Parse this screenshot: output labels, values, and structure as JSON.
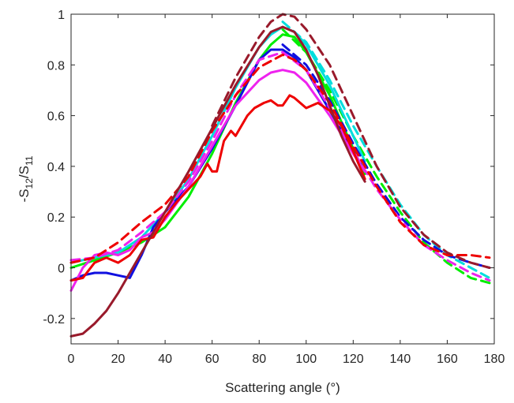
{
  "chart_data": {
    "type": "line",
    "title": "",
    "xlabel": "Scattering angle (°)",
    "ylabel": {
      "base_a": "-S",
      "sub_a": "12",
      "slash": "/S",
      "sub_b": "11"
    },
    "xlim": [
      0,
      180
    ],
    "ylim": [
      -0.3,
      1
    ],
    "xticks": [
      "0",
      "20",
      "40",
      "60",
      "80",
      "100",
      "120",
      "140",
      "160",
      "180"
    ],
    "yticks": [
      "-0.2",
      "0",
      "0.2",
      "0.4",
      "0.6",
      "0.8",
      "1"
    ],
    "grid": false,
    "legend": "none",
    "series": [
      {
        "color": "#00ee00",
        "style": "solid",
        "x": [
          0,
          10,
          20,
          30,
          40,
          50,
          60,
          70,
          80,
          85,
          90,
          95,
          100,
          110,
          120,
          125
        ],
        "y": [
          0.0,
          0.03,
          0.06,
          0.1,
          0.16,
          0.28,
          0.45,
          0.65,
          0.82,
          0.88,
          0.92,
          0.91,
          0.85,
          0.68,
          0.47,
          0.37
        ]
      },
      {
        "color": "#00ee00",
        "style": "dashed",
        "x": [
          90,
          100,
          110,
          120,
          130,
          140,
          150,
          160,
          170,
          178
        ],
        "y": [
          0.94,
          0.85,
          0.7,
          0.52,
          0.36,
          0.22,
          0.1,
          0.02,
          -0.04,
          -0.06
        ]
      },
      {
        "color": "#00dddd",
        "style": "solid",
        "x": [
          0,
          10,
          20,
          30,
          40,
          50,
          60,
          70,
          80,
          85,
          90,
          95,
          100,
          110,
          120,
          125
        ],
        "y": [
          0.02,
          0.04,
          0.06,
          0.12,
          0.22,
          0.35,
          0.52,
          0.71,
          0.87,
          0.92,
          0.95,
          0.93,
          0.88,
          0.72,
          0.52,
          0.42
        ]
      },
      {
        "color": "#00dddd",
        "style": "dashed",
        "x": [
          90,
          100,
          110,
          120,
          130,
          140,
          150,
          160,
          170,
          178
        ],
        "y": [
          0.97,
          0.89,
          0.74,
          0.56,
          0.4,
          0.25,
          0.13,
          0.05,
          0.0,
          -0.04
        ]
      },
      {
        "color": "#1010e0",
        "style": "solid",
        "x": [
          0,
          5,
          10,
          15,
          20,
          25,
          30,
          35,
          40,
          50,
          60,
          70,
          75,
          80,
          85,
          90,
          95,
          100,
          110,
          120,
          125
        ],
        "y": [
          -0.05,
          -0.03,
          -0.02,
          -0.02,
          -0.03,
          -0.04,
          0.05,
          0.16,
          0.22,
          0.32,
          0.47,
          0.64,
          0.73,
          0.82,
          0.86,
          0.86,
          0.83,
          0.78,
          0.62,
          0.46,
          0.38
        ]
      },
      {
        "color": "#1010e0",
        "style": "dashed",
        "x": [
          90,
          100,
          110,
          120,
          130,
          140,
          150,
          160,
          170,
          178
        ],
        "y": [
          0.88,
          0.8,
          0.66,
          0.49,
          0.33,
          0.2,
          0.11,
          0.05,
          0.02,
          0.0
        ]
      },
      {
        "color": "#ee22ee",
        "style": "solid",
        "x": [
          0,
          5,
          10,
          15,
          20,
          25,
          30,
          35,
          40,
          50,
          60,
          70,
          80,
          85,
          90,
          95,
          100,
          110,
          120,
          125
        ],
        "y": [
          -0.09,
          0.0,
          0.05,
          0.06,
          0.05,
          0.07,
          0.12,
          0.14,
          0.19,
          0.32,
          0.48,
          0.64,
          0.74,
          0.77,
          0.78,
          0.77,
          0.73,
          0.6,
          0.45,
          0.38
        ]
      },
      {
        "color": "#ee22ee",
        "style": "dashed",
        "x": [
          0,
          10,
          20,
          30,
          40,
          50,
          60,
          70,
          80,
          90,
          100,
          110,
          120,
          130,
          140,
          150,
          160,
          170,
          178
        ],
        "y": [
          0.03,
          0.04,
          0.07,
          0.14,
          0.22,
          0.34,
          0.5,
          0.68,
          0.82,
          0.85,
          0.78,
          0.63,
          0.46,
          0.31,
          0.19,
          0.09,
          0.03,
          -0.02,
          -0.05
        ]
      },
      {
        "color": "#ee0000",
        "style": "solid",
        "x": [
          0,
          5,
          10,
          15,
          20,
          25,
          30,
          35,
          40,
          45,
          50,
          55,
          58,
          60,
          62,
          65,
          68,
          70,
          75,
          78,
          82,
          85,
          88,
          90,
          93,
          95,
          100,
          105,
          110,
          115,
          120,
          125
        ],
        "y": [
          -0.05,
          -0.04,
          0.02,
          0.04,
          0.02,
          0.05,
          0.11,
          0.12,
          0.2,
          0.26,
          0.31,
          0.36,
          0.41,
          0.38,
          0.38,
          0.5,
          0.54,
          0.52,
          0.6,
          0.63,
          0.65,
          0.66,
          0.64,
          0.64,
          0.68,
          0.67,
          0.63,
          0.65,
          0.62,
          0.56,
          0.46,
          0.35
        ]
      },
      {
        "color": "#ee0000",
        "style": "dashed",
        "x": [
          0,
          10,
          20,
          30,
          40,
          50,
          60,
          70,
          80,
          90,
          95,
          100,
          110,
          120,
          130,
          140,
          150,
          160,
          170,
          178
        ],
        "y": [
          0.02,
          0.04,
          0.1,
          0.18,
          0.25,
          0.36,
          0.54,
          0.68,
          0.79,
          0.84,
          0.82,
          0.78,
          0.65,
          0.48,
          0.32,
          0.18,
          0.09,
          0.05,
          0.05,
          0.04
        ]
      },
      {
        "color": "#991a2b",
        "style": "solid",
        "x": [
          0,
          5,
          10,
          15,
          20,
          25,
          30,
          35,
          40,
          50,
          60,
          70,
          80,
          85,
          90,
          95,
          100,
          105,
          110,
          115,
          120,
          125
        ],
        "y": [
          -0.27,
          -0.26,
          -0.22,
          -0.17,
          -0.1,
          -0.02,
          0.06,
          0.14,
          0.22,
          0.38,
          0.55,
          0.72,
          0.87,
          0.93,
          0.95,
          0.93,
          0.86,
          0.76,
          0.64,
          0.52,
          0.42,
          0.34
        ]
      },
      {
        "color": "#991a2b",
        "style": "dashed",
        "x": [
          60,
          70,
          80,
          85,
          90,
          95,
          100,
          110,
          120,
          130,
          140,
          150,
          160,
          170,
          178
        ],
        "y": [
          0.56,
          0.75,
          0.91,
          0.97,
          1.0,
          0.99,
          0.94,
          0.8,
          0.6,
          0.4,
          0.24,
          0.13,
          0.06,
          0.02,
          0.0
        ]
      }
    ]
  }
}
